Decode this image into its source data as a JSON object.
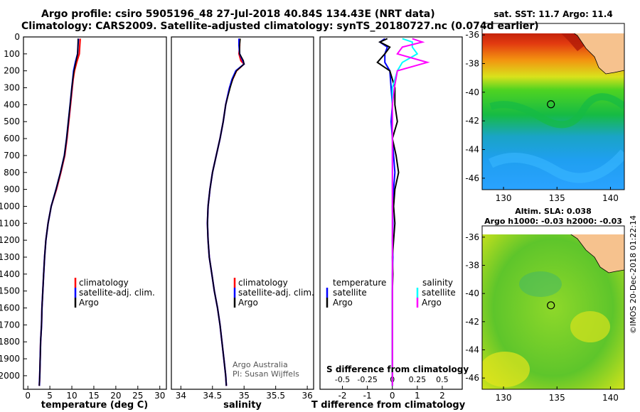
{
  "header": {
    "title_line1": "Argo profile: csiro 5905196_48 27-Jul-2018 40.84S 134.43E (NRT data)",
    "title_line2": "Climatology: CARS2009. Satellite-adjusted climatology: synTS_20180727.nc (0.074d earlier)"
  },
  "colors": {
    "climatology": "#ff0000",
    "satellite": "#0000ff",
    "argo": "#000000",
    "s_satellite": "#00ffff",
    "s_argo": "#ff00ff",
    "land": "#f6c28e"
  },
  "chart_data": [
    {
      "type": "line",
      "name": "temperature-profile",
      "xlabel": "temperature (deg C)",
      "ylabel": "",
      "xlim": [
        -1,
        31.5
      ],
      "ylim": [
        2080,
        0
      ],
      "xticks": [
        0,
        5,
        10,
        15,
        20,
        25,
        30
      ],
      "xtick_labels": [
        "0",
        "5",
        "10",
        "15",
        "20",
        "25",
        "30"
      ],
      "yticks": [
        0,
        100,
        200,
        300,
        400,
        500,
        600,
        700,
        800,
        900,
        1000,
        1100,
        1200,
        1300,
        1400,
        1500,
        1600,
        1700,
        1800,
        1900,
        2000
      ],
      "ytick_labels": [
        "0",
        "100",
        "200",
        "300",
        "400",
        "500",
        "600",
        "700",
        "800",
        "900",
        "1000",
        "1100",
        "1200",
        "1300",
        "1400",
        "1500",
        "1600",
        "1700",
        "1800",
        "1900",
        "2000"
      ],
      "depth": [
        10,
        50,
        100,
        150,
        200,
        250,
        300,
        400,
        500,
        600,
        700,
        800,
        900,
        1000,
        1100,
        1200,
        1300,
        1400,
        1500,
        1600,
        1700,
        1800,
        1900,
        2000,
        2060
      ],
      "series": [
        {
          "name": "climatology",
          "values": [
            11.9,
            11.8,
            11.7,
            11.1,
            10.6,
            10.3,
            10.1,
            9.7,
            9.3,
            8.9,
            8.4,
            7.5,
            6.5,
            5.3,
            4.6,
            4.1,
            3.8,
            3.6,
            3.4,
            3.2,
            3.1,
            2.9,
            2.8,
            2.7,
            2.6
          ]
        },
        {
          "name": "satellite-adj. clim.",
          "values": [
            11.5,
            11.4,
            11.3,
            10.8,
            10.4,
            10.2,
            10.0,
            9.6,
            9.2,
            8.8,
            8.3,
            7.4,
            6.4,
            5.3,
            4.6,
            4.1,
            3.8,
            3.6,
            3.4,
            3.2,
            3.1,
            2.9,
            2.8,
            2.7,
            2.6
          ]
        },
        {
          "name": "Argo",
          "values": [
            11.4,
            11.4,
            11.3,
            10.9,
            10.5,
            10.2,
            10.0,
            9.6,
            9.2,
            8.8,
            8.3,
            7.4,
            6.4,
            5.3,
            4.6,
            4.1,
            3.8,
            3.6,
            3.4,
            3.2,
            3.1,
            2.9,
            2.8,
            2.7,
            2.6
          ]
        }
      ],
      "legend": [
        "climatology",
        "satellite-adj. clim.",
        "Argo"
      ],
      "legend_position": "lower-right"
    },
    {
      "type": "line",
      "name": "salinity-profile",
      "xlabel": "salinity",
      "xlim": [
        33.85,
        36.1
      ],
      "ylim": [
        2080,
        0
      ],
      "xticks": [
        34,
        34.5,
        35,
        35.5,
        36
      ],
      "xtick_labels": [
        "34",
        "34.5",
        "35",
        "35.5",
        "36"
      ],
      "depth": [
        10,
        50,
        100,
        140,
        160,
        200,
        250,
        300,
        400,
        500,
        600,
        700,
        800,
        900,
        1000,
        1100,
        1200,
        1300,
        1400,
        1500,
        1600,
        1700,
        1800,
        1900,
        2000,
        2060
      ],
      "series": [
        {
          "name": "climatology",
          "values": [
            34.93,
            34.93,
            34.92,
            34.95,
            35.0,
            34.88,
            34.82,
            34.77,
            34.71,
            34.67,
            34.62,
            34.56,
            34.5,
            34.46,
            34.43,
            34.42,
            34.43,
            34.45,
            34.49,
            34.53,
            34.58,
            34.62,
            34.65,
            34.68,
            34.71,
            34.72
          ]
        },
        {
          "name": "satellite-adj. clim.",
          "values": [
            34.92,
            34.92,
            34.93,
            34.98,
            35.0,
            34.87,
            34.81,
            34.77,
            34.71,
            34.67,
            34.62,
            34.56,
            34.5,
            34.46,
            34.43,
            34.42,
            34.43,
            34.45,
            34.49,
            34.53,
            34.58,
            34.62,
            34.65,
            34.68,
            34.71,
            34.72
          ]
        },
        {
          "name": "Argo",
          "values": [
            34.94,
            34.93,
            34.93,
            34.99,
            35.0,
            34.88,
            34.82,
            34.78,
            34.71,
            34.67,
            34.62,
            34.56,
            34.5,
            34.46,
            34.43,
            34.42,
            34.43,
            34.45,
            34.49,
            34.53,
            34.58,
            34.62,
            34.65,
            34.68,
            34.71,
            34.72
          ]
        }
      ],
      "legend": [
        "climatology",
        "satellite-adj. clim.",
        "Argo"
      ],
      "legend_position": "lower-right",
      "annotation": [
        "Argo Australia",
        "PI: Susan Wijffels"
      ]
    },
    {
      "type": "line",
      "name": "difference-profile",
      "xlabel": "T difference from climatology",
      "xlabel_top": "S difference from climatology",
      "xlim": [
        -2.9,
        2.8
      ],
      "ylim": [
        2080,
        0
      ],
      "xticks": [
        -2,
        -1,
        0,
        1,
        2
      ],
      "xtick_labels": [
        "-2",
        "-1",
        "0",
        "1",
        "2"
      ],
      "sxtick_labels": [
        "-0.5",
        "-0.25",
        "0",
        "0.25",
        "0.5"
      ],
      "depth": [
        10,
        30,
        60,
        100,
        150,
        200,
        300,
        400,
        500,
        600,
        700,
        800,
        900,
        1000,
        1100,
        1200,
        1300,
        1400,
        1500,
        1600,
        1700,
        1800,
        1900,
        2000,
        2060
      ],
      "series": [
        {
          "name": "temperature satellite",
          "values": [
            -0.3,
            -0.5,
            -0.2,
            -0.3,
            -0.3,
            -0.1,
            -0.05,
            0.0,
            -0.05,
            0.0,
            0.05,
            0.1,
            0.05,
            0.0,
            0.02,
            0.0,
            0.02,
            0.0,
            0.0,
            0.0,
            0.0,
            0.0,
            0.0,
            0.0,
            0.0
          ]
        },
        {
          "name": "temperature Argo",
          "values": [
            -0.2,
            -0.5,
            -0.1,
            -0.3,
            -0.6,
            -0.1,
            0.1,
            0.1,
            0.2,
            0.0,
            0.15,
            0.25,
            0.1,
            0.05,
            0.1,
            0.05,
            0.0,
            0.02,
            0.0,
            0.0,
            0.0,
            0.0,
            0.0,
            0.0,
            0.0
          ]
        },
        {
          "name": "salinity satellite",
          "values": [
            0.1,
            0.2,
            0.2,
            0.25,
            0.1,
            0.05,
            0.0,
            0.0,
            0.0,
            0.0,
            0.0,
            0.0,
            0.0,
            0.0,
            0.0,
            0.0,
            0.0,
            0.0,
            0.0,
            0.0,
            0.0,
            0.0,
            0.0,
            0.0,
            0.0
          ]
        },
        {
          "name": "salinity Argo",
          "values": [
            0.2,
            0.3,
            0.1,
            0.05,
            0.35,
            0.05,
            0.02,
            0.0,
            0.0,
            0.0,
            0.0,
            0.0,
            0.0,
            0.0,
            0.0,
            0.0,
            0.0,
            0.0,
            0.0,
            0.0,
            0.0,
            0.0,
            0.0,
            0.0,
            0.0
          ]
        }
      ],
      "legend_temperature_title": "temperature",
      "legend_salinity_title": "salinity",
      "legend_temperature": [
        "satellite",
        "Argo"
      ],
      "legend_salinity": [
        "satellite",
        "Argo"
      ]
    },
    {
      "type": "heatmap",
      "name": "sst-map",
      "title": "sat. SST: 11.7 Argo: 11.4",
      "xticks": [
        130,
        135,
        140
      ],
      "xtick_labels": [
        "130",
        "135",
        "140"
      ],
      "xlim": [
        128,
        141.3
      ],
      "yticks": [
        -36,
        -38,
        -40,
        -42,
        -44,
        -46
      ],
      "ytick_labels": [
        "-36",
        "-38",
        "-40",
        "-42",
        "-44",
        "-46"
      ],
      "ylim": [
        -46.8,
        -35.2
      ],
      "marker": {
        "lon": 134.43,
        "lat": -40.84
      }
    },
    {
      "type": "heatmap",
      "name": "sla-map",
      "title": "Altim. SLA: 0.038",
      "subtitle": "Argo h1000: -0.03 h2000: -0.03",
      "xticks": [
        130,
        135,
        140
      ],
      "xtick_labels": [
        "130",
        "135",
        "140"
      ],
      "xlim": [
        128,
        141.3
      ],
      "yticks": [
        -36,
        -38,
        -40,
        -42,
        -44,
        -46
      ],
      "ytick_labels": [
        "-36",
        "-38",
        "-40",
        "-42",
        "-44",
        "-46"
      ],
      "ylim": [
        -46.8,
        -35.2
      ],
      "marker": {
        "lon": 134.43,
        "lat": -40.84
      }
    }
  ],
  "footer": {
    "side_stamp": "©IMOS 20-Dec-2018 01:22:14"
  }
}
